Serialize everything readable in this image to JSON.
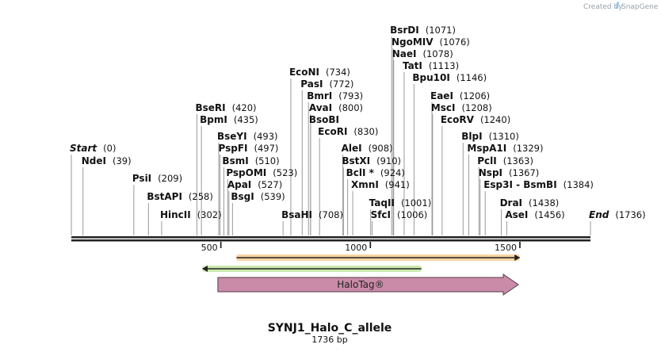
{
  "brand": {
    "created_by": "Created by",
    "name": "SnapGene"
  },
  "plasmid": {
    "name": "SYNJ1_Halo_C_allele",
    "length_label": "1736 bp",
    "length": 1736
  },
  "ruler": {
    "ticks": [
      {
        "value": 500,
        "label": "500"
      },
      {
        "value": 1000,
        "label": "1000"
      },
      {
        "value": 1500,
        "label": "1500"
      }
    ]
  },
  "sites": [
    {
      "name": "Start",
      "pos": 0,
      "pos_label": "(0)",
      "italic": true,
      "row": 191
    },
    {
      "name": "NdeI",
      "pos": 39,
      "pos_label": "(39)",
      "row": 207
    },
    {
      "name": "PsiI",
      "pos": 209,
      "pos_label": "(209)",
      "row": 229
    },
    {
      "name": "BstAPI",
      "pos": 258,
      "pos_label": "(258)",
      "row": 252
    },
    {
      "name": "HincII",
      "pos": 302,
      "pos_label": "(302)",
      "row": 275
    },
    {
      "name": "BseRI",
      "pos": 420,
      "pos_label": "(420)",
      "row": 140
    },
    {
      "name": "BpmI",
      "pos": 435,
      "pos_label": "(435)",
      "row": 155
    },
    {
      "name": "BseYI",
      "pos": 493,
      "pos_label": "(493)",
      "row": 176
    },
    {
      "name": "PspFI",
      "pos": 497,
      "pos_label": "(497)",
      "row": 191
    },
    {
      "name": "BsmI",
      "pos": 510,
      "pos_label": "(510)",
      "row": 207
    },
    {
      "name": "PspOMI",
      "pos": 523,
      "pos_label": "(523)",
      "row": 222
    },
    {
      "name": "ApaI",
      "pos": 527,
      "pos_label": "(527)",
      "row": 237
    },
    {
      "name": "BsgI",
      "pos": 539,
      "pos_label": "(539)",
      "row": 252
    },
    {
      "name": "BsaHI",
      "pos": 708,
      "pos_label": "(708)",
      "row": 275
    },
    {
      "name": "EcoNI",
      "pos": 734,
      "pos_label": "(734)",
      "row": 95
    },
    {
      "name": "PasI",
      "pos": 772,
      "pos_label": "(772)",
      "row": 110
    },
    {
      "name": "BmrI",
      "pos": 793,
      "pos_label": "(793)",
      "row": 125
    },
    {
      "name": "AvaI",
      "pos": 800,
      "pos_label": "(800)",
      "row": 140
    },
    {
      "name": "BsoBI",
      "pos": 800,
      "pos_label": "",
      "row": 155
    },
    {
      "name": "EcoRI",
      "pos": 830,
      "pos_label": "(830)",
      "row": 170
    },
    {
      "name": "AleI",
      "pos": 908,
      "pos_label": "(908)",
      "row": 191
    },
    {
      "name": "BstXI",
      "pos": 910,
      "pos_label": "(910)",
      "row": 207
    },
    {
      "name": "BclI *",
      "pos": 924,
      "pos_label": "(924)",
      "row": 222
    },
    {
      "name": "XmnI",
      "pos": 941,
      "pos_label": "(941)",
      "row": 237
    },
    {
      "name": "TaqII",
      "pos": 1001,
      "pos_label": "(1001)",
      "row": 260
    },
    {
      "name": "SfcI",
      "pos": 1006,
      "pos_label": "(1006)",
      "row": 275
    },
    {
      "name": "BsrDI",
      "pos": 1071,
      "pos_label": "(1071)",
      "row": 42
    },
    {
      "name": "NgoMIV",
      "pos": 1076,
      "pos_label": "(1076)",
      "row": 57
    },
    {
      "name": "NaeI",
      "pos": 1078,
      "pos_label": "(1078)",
      "row": 72
    },
    {
      "name": "TatI",
      "pos": 1113,
      "pos_label": "(1113)",
      "row": 87
    },
    {
      "name": "Bpu10I",
      "pos": 1146,
      "pos_label": "(1146)",
      "row": 102
    },
    {
      "name": "EaeI",
      "pos": 1206,
      "pos_label": "(1206)",
      "row": 125
    },
    {
      "name": "MscI",
      "pos": 1208,
      "pos_label": "(1208)",
      "row": 140
    },
    {
      "name": "EcoRV",
      "pos": 1240,
      "pos_label": "(1240)",
      "row": 155
    },
    {
      "name": "BlpI",
      "pos": 1310,
      "pos_label": "(1310)",
      "row": 176
    },
    {
      "name": "MspA1I",
      "pos": 1329,
      "pos_label": "(1329)",
      "row": 191
    },
    {
      "name": "PclI",
      "pos": 1363,
      "pos_label": "(1363)",
      "row": 207
    },
    {
      "name": "NspI",
      "pos": 1367,
      "pos_label": "(1367)",
      "row": 222
    },
    {
      "name": "Esp3I - BsmBI",
      "pos": 1384,
      "pos_label": "(1384)",
      "row": 237
    },
    {
      "name": "DraI",
      "pos": 1438,
      "pos_label": "(1438)",
      "row": 260
    },
    {
      "name": "AseI",
      "pos": 1456,
      "pos_label": "(1456)",
      "row": 275
    },
    {
      "name": "End",
      "pos": 1736,
      "pos_label": "(1736)",
      "italic": true,
      "row": 275
    }
  ],
  "features": [
    {
      "name": "orange-primer",
      "type": "primer",
      "start": 553,
      "end": 1498,
      "direction": "forward",
      "color": "#f0a030",
      "label": ""
    },
    {
      "name": "green-primer",
      "type": "primer",
      "start": 440,
      "end": 1170,
      "direction": "reverse",
      "color": "#8fd14f",
      "label": ""
    },
    {
      "name": "halotag-feature",
      "type": "cds",
      "start": 490,
      "end": 1495,
      "direction": "forward",
      "color": "#c98ba8",
      "label": "HaloTag®"
    }
  ]
}
